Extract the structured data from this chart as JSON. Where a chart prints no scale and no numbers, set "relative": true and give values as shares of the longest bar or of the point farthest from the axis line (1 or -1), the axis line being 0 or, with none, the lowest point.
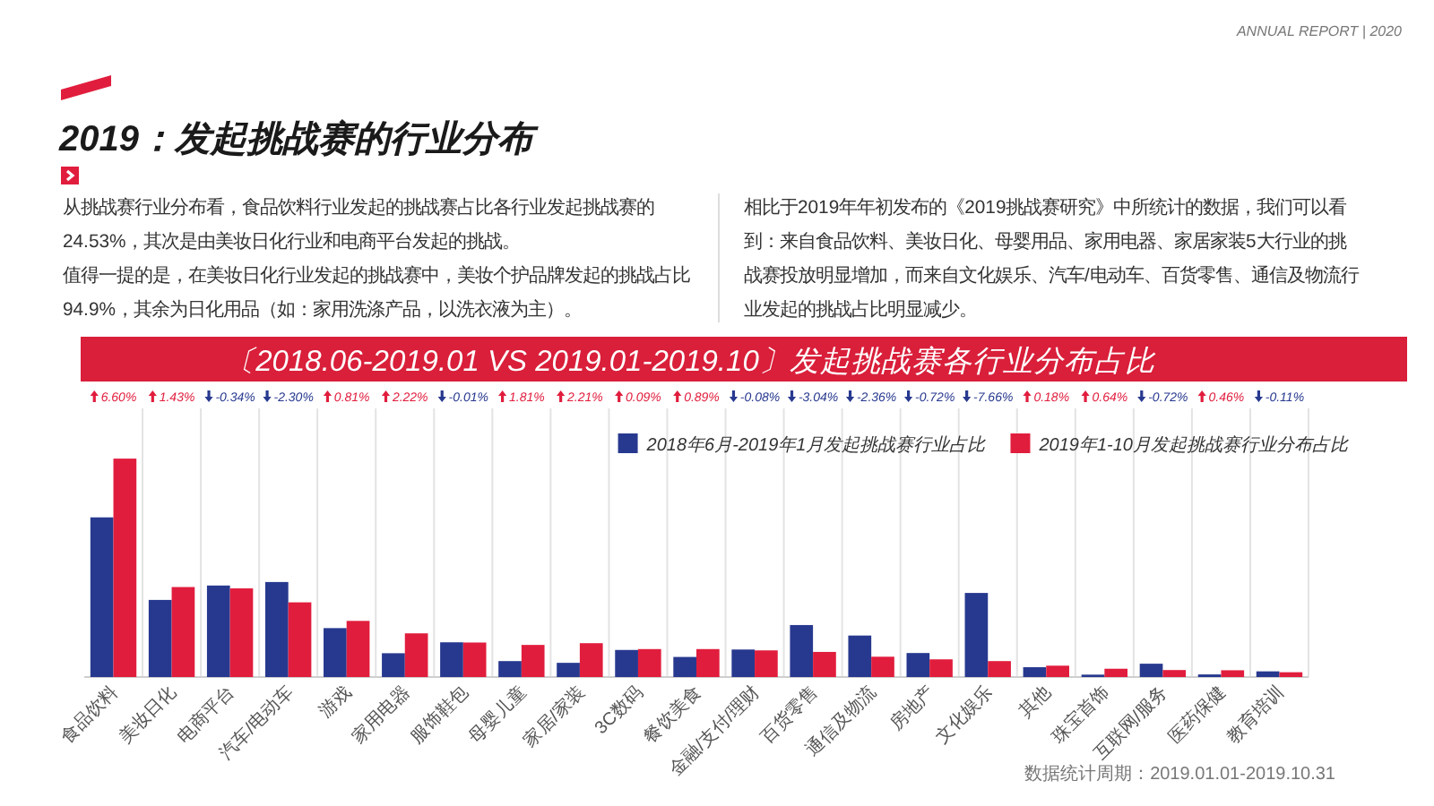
{
  "chart_data": {
    "type": "bar",
    "title": "2019：发起挑战赛的行业分布",
    "subtitle": "〔2018.06-2019.01 VS 2019.01-2019.10〕发起挑战赛各行业分布占比",
    "categories": [
      "食品饮料",
      "美妆日化",
      "电商平台",
      "汽车/电动车",
      "游戏",
      "家用电器",
      "服饰鞋包",
      "母婴儿童",
      "家居/家装",
      "3C数码",
      "餐饮美食",
      "金融/支付/理财",
      "百货零售",
      "通信及物流",
      "房地产",
      "文化娱乐",
      "其他",
      "珠宝首饰",
      "互联网/服务",
      "医药保健",
      "教育培训"
    ],
    "series": [
      {
        "name": "2018年6月-2019年1月发起挑战赛行业占比",
        "color": "#27398f",
        "values": [
          0.731,
          0.353,
          0.419,
          0.435,
          0.224,
          0.109,
          0.159,
          0.073,
          0.065,
          0.124,
          0.092,
          0.126,
          0.238,
          0.19,
          0.11,
          0.385,
          0.045,
          0.011,
          0.061,
          0.012,
          0.026
        ]
      },
      {
        "name": "2019年1-10月发起挑战赛行业分布占比",
        "color": "#e11d3d",
        "values": [
          1,
          0.412,
          0.406,
          0.342,
          0.257,
          0.2,
          0.158,
          0.147,
          0.155,
          0.128,
          0.128,
          0.122,
          0.115,
          0.093,
          0.081,
          0.073,
          0.052,
          0.038,
          0.032,
          0.031,
          0.022
        ]
      }
    ],
    "relative": true,
    "grid": "x",
    "legend": "top right",
    "annotations": [
      "ANNUAL REPORT | 2020",
      "从挑战赛行业分布看，食品饮料行业发起的挑战赛占比各行业发起挑战赛的24.53%，其次是由美妆日化行业和电商平台发起的挑战。",
      "值得一提的是，在美妆日化行业发起的挑战赛中，美妆个护品牌发起的挑战占比94.9%，其余为日化用品（如：家用洗涤产品，以洗衣液为主）。",
      "相比于2019年年初发布的《2019挑战赛研究》中所统计的数据，我们可以看到：来自食品饮料、美妆日化、母婴用品、家用电器、家居家装5大行业的挑战赛投放明显增加，而来自文化娱乐、汽车/电动车、百货零售、通信及物流行业发起的挑战占比明显减少。",
      "数据统计周期：2019.01.01-2019.10.31",
      "6.60%",
      "1.43%",
      "-0.34%",
      "-2.30%",
      "0.81%",
      "2.22%",
      "-0.01%",
      "1.81%",
      "2.21%",
      "0.09%",
      "0.89%",
      "-0.08%",
      "-3.04%",
      "-2.36%",
      "-0.72%",
      "-7.66%",
      "0.18%",
      "0.64%",
      "-0.72%",
      "0.46%",
      "-0.11%"
    ]
  }
}
